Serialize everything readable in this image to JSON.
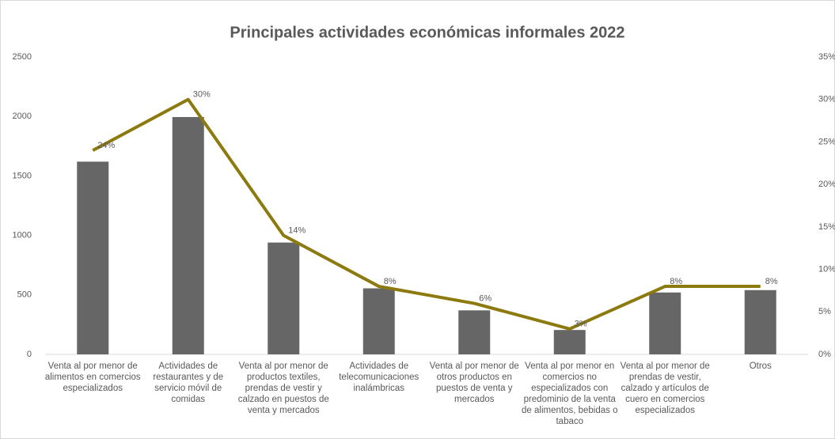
{
  "chart_data": {
    "type": "combo",
    "title": "Principales actividades económicas informales 2022",
    "categories": [
      "Venta al por menor de alimentos en comercios especializados",
      "Actividades de restaurantes y de servicio móvil de comidas",
      "Venta al por menor de productos textiles, prendas de vestir y calzado en puestos de venta y mercados",
      "Actividades de telecomunicaciones inalámbricas",
      "Venta al por menor de otros productos en puestos de venta y mercados",
      "Venta al por menor en comercios no especializados con predominio de la venta de alimentos, bebidas o tabaco",
      "Venta al por menor de prendas de vestir, calzado y artículos de cuero en comercios especializados",
      "Otros"
    ],
    "series": [
      {
        "type": "bar",
        "color": "#666666",
        "values": [
          1620,
          1995,
          940,
          555,
          370,
          205,
          520,
          540
        ]
      },
      {
        "type": "line",
        "axis": "y2",
        "color": "#8c7a0f",
        "values": [
          24,
          30,
          14,
          8,
          6,
          3,
          8,
          8
        ],
        "value_labels": [
          "24%",
          "30%",
          "14%",
          "8%",
          "6%",
          "3%",
          "8%",
          "8%"
        ]
      }
    ],
    "ylim": [
      0,
      2500
    ],
    "yticks": [
      0,
      500,
      1000,
      1500,
      2000,
      2500
    ],
    "y2lim": [
      0,
      35
    ],
    "y2ticks": [
      {
        "value": 0,
        "label": "0%"
      },
      {
        "value": 5,
        "label": "5%"
      },
      {
        "value": 10,
        "label": "10%"
      },
      {
        "value": 15,
        "label": "15%"
      },
      {
        "value": 20,
        "label": "20%"
      },
      {
        "value": 25,
        "label": "25%"
      },
      {
        "value": 30,
        "label": "30%"
      },
      {
        "value": 35,
        "label": "35%"
      }
    ],
    "grid": false
  }
}
